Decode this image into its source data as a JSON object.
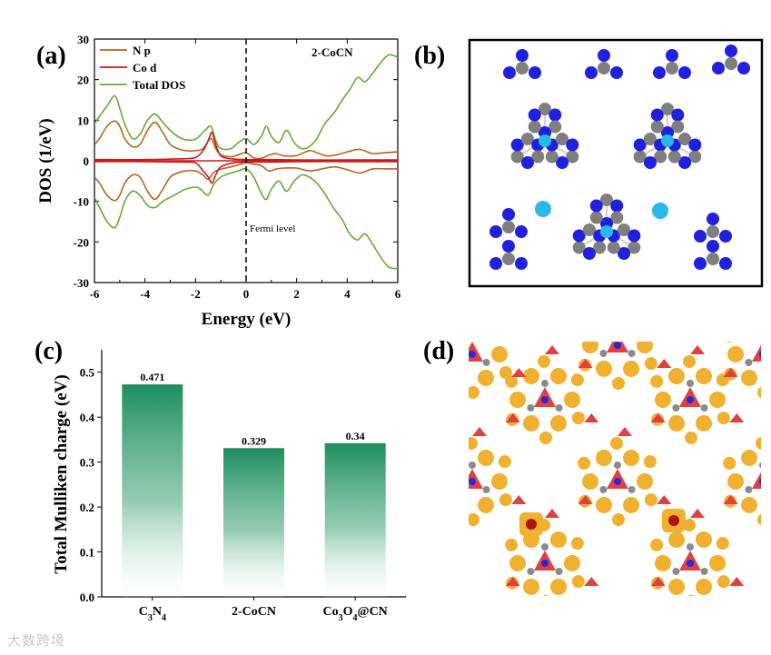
{
  "panel_labels": {
    "a": "(a)",
    "b": "(b)",
    "c": "(c)",
    "d": "(d)"
  },
  "watermark": "大数跨境",
  "chart_data": [
    {
      "id": "a",
      "type": "line",
      "title": "",
      "annotation": "2-CoCN",
      "xlabel": "Energy (eV)",
      "ylabel": "DOS (1/eV)",
      "xlim": [
        -6,
        6
      ],
      "ylim": [
        -30,
        30
      ],
      "xticks": [
        -6,
        -4,
        -2,
        0,
        2,
        4,
        6
      ],
      "yticks": [
        -30,
        -20,
        -10,
        0,
        10,
        20,
        30
      ],
      "fermi_label": "Fermi level",
      "fermi_x": 0,
      "legend_position": "top-left",
      "series": [
        {
          "name": "N p",
          "color": "#b5651d",
          "up": [
            [
              -6,
              4
            ],
            [
              -5.8,
              5.5
            ],
            [
              -5.5,
              8.5
            ],
            [
              -5.2,
              9.8
            ],
            [
              -5,
              8.5
            ],
            [
              -4.8,
              5.5
            ],
            [
              -4.5,
              3.5
            ],
            [
              -4.2,
              4
            ],
            [
              -3.9,
              7.5
            ],
            [
              -3.6,
              9.5
            ],
            [
              -3.3,
              7
            ],
            [
              -3,
              4
            ],
            [
              -2.7,
              3
            ],
            [
              -2.4,
              2.5
            ],
            [
              -2,
              2.5
            ],
            [
              -1.7,
              3
            ],
            [
              -1.4,
              5.5
            ],
            [
              -1.2,
              3
            ],
            [
              -1,
              1.5
            ],
            [
              -0.6,
              1
            ],
            [
              -0.3,
              1.5
            ],
            [
              0,
              2
            ],
            [
              0.3,
              0.7
            ],
            [
              0.6,
              0.6
            ],
            [
              0.9,
              1.4
            ],
            [
              1.2,
              1.8
            ],
            [
              1.5,
              1.2
            ],
            [
              2,
              1.3
            ],
            [
              2.5,
              2.5
            ],
            [
              2.8,
              2
            ],
            [
              3.2,
              1.2
            ],
            [
              3.6,
              1.5
            ],
            [
              4,
              2.2
            ],
            [
              4.5,
              2.8
            ],
            [
              5,
              1.8
            ],
            [
              5.5,
              2
            ],
            [
              6,
              2.2
            ]
          ],
          "down": [
            [
              -6,
              -4
            ],
            [
              -5.8,
              -5.5
            ],
            [
              -5.5,
              -8.5
            ],
            [
              -5.2,
              -9.8
            ],
            [
              -5,
              -8.5
            ],
            [
              -4.8,
              -5.5
            ],
            [
              -4.5,
              -3.5
            ],
            [
              -4.2,
              -4
            ],
            [
              -3.9,
              -7.5
            ],
            [
              -3.6,
              -9.5
            ],
            [
              -3.3,
              -7
            ],
            [
              -3,
              -4
            ],
            [
              -2.7,
              -3
            ],
            [
              -2.4,
              -2.5
            ],
            [
              -2,
              -2.5
            ],
            [
              -1.7,
              -3.5
            ],
            [
              -1.5,
              -4.5
            ],
            [
              -1.2,
              -2.5
            ],
            [
              -0.6,
              -1.5
            ],
            [
              -0.3,
              -1
            ],
            [
              0,
              -0.5
            ],
            [
              0.3,
              -0.8
            ],
            [
              0.6,
              -1.2
            ],
            [
              0.9,
              -2.5
            ],
            [
              1.2,
              -2
            ],
            [
              1.5,
              -1.8
            ],
            [
              2,
              -1.8
            ],
            [
              2.5,
              -2.5
            ],
            [
              3,
              -2
            ],
            [
              3.5,
              -1.5
            ],
            [
              4,
              -2.2
            ],
            [
              4.5,
              -3
            ],
            [
              5,
              -2
            ],
            [
              5.5,
              -2
            ],
            [
              6,
              -2
            ]
          ]
        },
        {
          "name": "Co d",
          "color": "#cc1a1a",
          "up": [
            [
              -6,
              0.3
            ],
            [
              -4,
              0.3
            ],
            [
              -2.5,
              0.5
            ],
            [
              -2,
              0.8
            ],
            [
              -1.7,
              2.5
            ],
            [
              -1.5,
              5
            ],
            [
              -1.35,
              7
            ],
            [
              -1.2,
              4
            ],
            [
              -1,
              1.2
            ],
            [
              -0.6,
              0.5
            ],
            [
              0,
              0.3
            ],
            [
              0.5,
              0.3
            ],
            [
              1,
              0.3
            ],
            [
              2,
              0.2
            ],
            [
              4,
              0.2
            ],
            [
              6,
              0.2
            ]
          ],
          "down": [
            [
              -6,
              -0.2
            ],
            [
              -4,
              -0.2
            ],
            [
              -2.5,
              -0.3
            ],
            [
              -2,
              -0.5
            ],
            [
              -1.7,
              -2.5
            ],
            [
              -1.5,
              -4
            ],
            [
              -1.35,
              -5.5
            ],
            [
              -1.2,
              -3.5
            ],
            [
              -1,
              -1.5
            ],
            [
              -0.5,
              -0.5
            ],
            [
              0,
              -0.3
            ],
            [
              0.5,
              -0.3
            ],
            [
              1,
              -0.3
            ],
            [
              2,
              -0.2
            ],
            [
              4,
              -0.2
            ],
            [
              6,
              -0.2
            ]
          ]
        },
        {
          "name": "Total DOS",
          "color": "#66aa33",
          "up": [
            [
              -6,
              9
            ],
            [
              -5.8,
              11
            ],
            [
              -5.5,
              13.5
            ],
            [
              -5.2,
              16
            ],
            [
              -5,
              13
            ],
            [
              -4.8,
              9
            ],
            [
              -4.5,
              5.5
            ],
            [
              -4.2,
              6.5
            ],
            [
              -3.9,
              10
            ],
            [
              -3.6,
              11.5
            ],
            [
              -3.3,
              9.5
            ],
            [
              -3,
              7.5
            ],
            [
              -2.7,
              6
            ],
            [
              -2.4,
              5.2
            ],
            [
              -2,
              5.3
            ],
            [
              -1.7,
              7
            ],
            [
              -1.4,
              8.5
            ],
            [
              -1.2,
              5
            ],
            [
              -1,
              3
            ],
            [
              -0.6,
              3
            ],
            [
              -0.3,
              4.5
            ],
            [
              0,
              5.5
            ],
            [
              0.3,
              4
            ],
            [
              0.6,
              6
            ],
            [
              0.8,
              8.5
            ],
            [
              1,
              6
            ],
            [
              1.3,
              4.5
            ],
            [
              1.6,
              7.5
            ],
            [
              1.9,
              4.5
            ],
            [
              2.2,
              3
            ],
            [
              2.5,
              3.5
            ],
            [
              2.8,
              5.5
            ],
            [
              3.1,
              9
            ],
            [
              3.5,
              12
            ],
            [
              3.8,
              15
            ],
            [
              4.1,
              17.5
            ],
            [
              4.4,
              20.5
            ],
            [
              4.7,
              19.5
            ],
            [
              5,
              21.5
            ],
            [
              5.3,
              24
            ],
            [
              5.6,
              26
            ],
            [
              5.8,
              26
            ],
            [
              6,
              25.5
            ]
          ],
          "down": [
            [
              -6,
              -9
            ],
            [
              -5.8,
              -11.5
            ],
            [
              -5.5,
              -15
            ],
            [
              -5.2,
              -16.5
            ],
            [
              -5,
              -14
            ],
            [
              -4.8,
              -10
            ],
            [
              -4.5,
              -7.5
            ],
            [
              -4.2,
              -8.5
            ],
            [
              -3.9,
              -11
            ],
            [
              -3.6,
              -11.5
            ],
            [
              -3.3,
              -10
            ],
            [
              -3,
              -9
            ],
            [
              -2.7,
              -8
            ],
            [
              -2.4,
              -7
            ],
            [
              -2,
              -6.5
            ],
            [
              -1.8,
              -7
            ],
            [
              -1.5,
              -8.5
            ],
            [
              -1.3,
              -6
            ],
            [
              -1,
              -4
            ],
            [
              -0.6,
              -3
            ],
            [
              -0.3,
              -2.5
            ],
            [
              0,
              -2
            ],
            [
              0.3,
              -4
            ],
            [
              0.6,
              -8
            ],
            [
              0.8,
              -9.5
            ],
            [
              1,
              -7
            ],
            [
              1.3,
              -5
            ],
            [
              1.6,
              -7.5
            ],
            [
              1.9,
              -5
            ],
            [
              2.2,
              -3.5
            ],
            [
              2.5,
              -4
            ],
            [
              2.8,
              -5.5
            ],
            [
              3.1,
              -8
            ],
            [
              3.5,
              -12
            ],
            [
              3.8,
              -14.5
            ],
            [
              4.1,
              -18
            ],
            [
              4.4,
              -19.5
            ],
            [
              4.7,
              -18
            ],
            [
              5,
              -20.5
            ],
            [
              5.3,
              -23.5
            ],
            [
              5.6,
              -26
            ],
            [
              5.8,
              -26.5
            ],
            [
              6,
              -26.5
            ]
          ]
        }
      ]
    },
    {
      "id": "c",
      "type": "bar",
      "xlabel": "",
      "ylabel": "Total Mulliken charge (eV)",
      "ylim": [
        0,
        0.55
      ],
      "yticks": [
        0.0,
        0.1,
        0.2,
        0.3,
        0.4,
        0.5
      ],
      "categories": [
        {
          "base": "C",
          "sub1": "3",
          "mid": "N",
          "sub2": "4",
          "tail": ""
        },
        {
          "base": "2-CoCN",
          "sub1": "",
          "mid": "",
          "sub2": "",
          "tail": ""
        },
        {
          "base": "Co",
          "sub1": "3",
          "mid": "O",
          "sub2": "4",
          "tail": "@CN"
        }
      ],
      "values": [
        0.471,
        0.329,
        0.34
      ],
      "value_labels": [
        "0.471",
        "0.329",
        "0.34"
      ],
      "bar_color": "#1f8f5f"
    }
  ]
}
